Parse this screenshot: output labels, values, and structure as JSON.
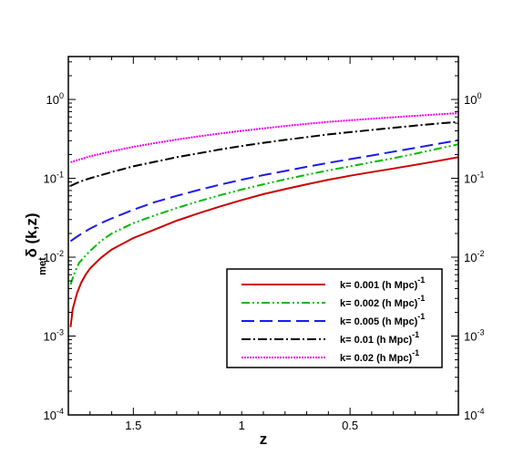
{
  "chart_data": {
    "type": "line",
    "title": "",
    "xlabel": "z",
    "ylabel": {
      "main": "δ (k,z)",
      "subscript": "met"
    },
    "x_reversed": true,
    "xlim": [
      1.8,
      0.0
    ],
    "ylim": [
      0.0001,
      3.5
    ],
    "yscale": "log",
    "x_ticks": [
      {
        "value": 1.5,
        "label": "1.5"
      },
      {
        "value": 1.0,
        "label": "1"
      },
      {
        "value": 0.5,
        "label": "0.5"
      }
    ],
    "y_ticks": [
      {
        "value": 0.0001,
        "base": "10",
        "exp": "-4"
      },
      {
        "value": 0.001,
        "base": "10",
        "exp": "-3"
      },
      {
        "value": 0.01,
        "base": "10",
        "exp": "-2"
      },
      {
        "value": 0.1,
        "base": "10",
        "exp": "-1"
      },
      {
        "value": 1,
        "base": "10",
        "exp": "0"
      }
    ],
    "legend_position": "lower-right",
    "series": [
      {
        "name": "k= 0.001 (h Mpc)",
        "sup": "-1",
        "color": "#cc0000",
        "dash": "",
        "x": [
          1.79,
          1.78,
          1.76,
          1.74,
          1.72,
          1.7,
          1.65,
          1.6,
          1.5,
          1.4,
          1.3,
          1.2,
          1.1,
          1.0,
          0.9,
          0.8,
          0.7,
          0.6,
          0.5,
          0.4,
          0.3,
          0.2,
          0.1,
          0.0
        ],
        "y": [
          0.0013,
          0.0022,
          0.0035,
          0.0048,
          0.006,
          0.0072,
          0.0098,
          0.0125,
          0.0175,
          0.0225,
          0.029,
          0.036,
          0.044,
          0.053,
          0.063,
          0.073,
          0.084,
          0.096,
          0.108,
          0.12,
          0.133,
          0.148,
          0.165,
          0.185
        ]
      },
      {
        "name": "k= 0.002 (h Mpc)",
        "sup": "-1",
        "color": "#00bb00",
        "dash": "9,3,2,3,2,3",
        "x": [
          1.79,
          1.77,
          1.75,
          1.72,
          1.7,
          1.65,
          1.6,
          1.5,
          1.4,
          1.3,
          1.2,
          1.1,
          1.0,
          0.9,
          0.8,
          0.7,
          0.6,
          0.5,
          0.4,
          0.3,
          0.2,
          0.1,
          0.0
        ],
        "y": [
          0.0045,
          0.0065,
          0.0085,
          0.0105,
          0.012,
          0.016,
          0.02,
          0.027,
          0.034,
          0.042,
          0.051,
          0.061,
          0.072,
          0.084,
          0.097,
          0.111,
          0.126,
          0.142,
          0.16,
          0.18,
          0.205,
          0.235,
          0.27
        ]
      },
      {
        "name": "k= 0.005 (h Mpc)",
        "sup": "-1",
        "color": "#1a1aee",
        "dash": "14,6",
        "x": [
          1.79,
          1.75,
          1.7,
          1.65,
          1.6,
          1.5,
          1.4,
          1.3,
          1.2,
          1.1,
          1.0,
          0.9,
          0.8,
          0.7,
          0.6,
          0.5,
          0.4,
          0.3,
          0.2,
          0.1,
          0.0
        ],
        "y": [
          0.016,
          0.019,
          0.023,
          0.027,
          0.031,
          0.04,
          0.05,
          0.06,
          0.071,
          0.083,
          0.096,
          0.11,
          0.124,
          0.14,
          0.157,
          0.175,
          0.195,
          0.218,
          0.243,
          0.272,
          0.305
        ]
      },
      {
        "name": "k= 0.01 (h Mpc)",
        "sup": "-1",
        "color": "#000000",
        "dash": "10,3,2,3",
        "x": [
          1.79,
          1.75,
          1.7,
          1.6,
          1.5,
          1.4,
          1.3,
          1.2,
          1.1,
          1.0,
          0.9,
          0.8,
          0.7,
          0.6,
          0.5,
          0.4,
          0.3,
          0.2,
          0.1,
          0.0
        ],
        "y": [
          0.08,
          0.09,
          0.1,
          0.12,
          0.142,
          0.162,
          0.185,
          0.207,
          0.232,
          0.257,
          0.282,
          0.307,
          0.333,
          0.36,
          0.385,
          0.41,
          0.437,
          0.465,
          0.493,
          0.52
        ]
      },
      {
        "name": "k= 0.02 (h Mpc)",
        "sup": "-1",
        "color": "#ee00ee",
        "dash": "2,1",
        "x": [
          1.79,
          1.7,
          1.6,
          1.5,
          1.4,
          1.3,
          1.2,
          1.1,
          1.0,
          0.9,
          0.8,
          0.7,
          0.6,
          0.5,
          0.4,
          0.3,
          0.2,
          0.1,
          0.0
        ],
        "y": [
          0.16,
          0.19,
          0.22,
          0.25,
          0.28,
          0.31,
          0.34,
          0.37,
          0.4,
          0.43,
          0.46,
          0.49,
          0.52,
          0.545,
          0.57,
          0.595,
          0.62,
          0.645,
          0.67
        ]
      }
    ]
  }
}
